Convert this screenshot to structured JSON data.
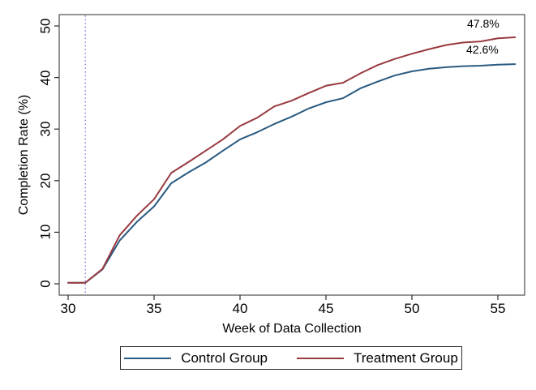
{
  "chart_data": {
    "type": "line",
    "xlabel": "Week of Data Collection",
    "ylabel": "Completion Rate (%)",
    "xlim": [
      30,
      56
    ],
    "ylim": [
      0,
      50
    ],
    "x_ticks": [
      30,
      35,
      40,
      45,
      50,
      55
    ],
    "y_ticks": [
      0,
      10,
      20,
      30,
      40,
      50
    ],
    "grid": false,
    "x": [
      30,
      31,
      32,
      33,
      34,
      35,
      36,
      37,
      38,
      39,
      40,
      41,
      42,
      43,
      44,
      45,
      46,
      47,
      48,
      49,
      50,
      51,
      52,
      53,
      54,
      55,
      56
    ],
    "series": [
      {
        "name": "Control Group",
        "color": "#295a80",
        "values": [
          0.2,
          0.2,
          2.8,
          8.4,
          12.0,
          15.0,
          19.5,
          21.6,
          23.5,
          25.8,
          28.0,
          29.4,
          31.0,
          32.4,
          34.0,
          35.2,
          36.0,
          37.9,
          39.2,
          40.4,
          41.2,
          41.7,
          42.0,
          42.2,
          42.3,
          42.5,
          42.6
        ]
      },
      {
        "name": "Treatment Group",
        "color": "#983a40",
        "values": [
          0.2,
          0.2,
          2.9,
          9.4,
          13.2,
          16.4,
          21.5,
          23.6,
          25.8,
          28.0,
          30.6,
          32.2,
          34.4,
          35.5,
          37.0,
          38.4,
          39.0,
          40.8,
          42.4,
          43.6,
          44.6,
          45.5,
          46.3,
          46.8,
          47.0,
          47.6,
          47.8
        ]
      }
    ],
    "vline": {
      "x": 31,
      "style": "dotted",
      "color": "#6f6fd0"
    },
    "annotations": [
      {
        "text": "47.8%",
        "series": "Treatment Group"
      },
      {
        "text": "42.6%",
        "series": "Control Group"
      }
    ],
    "legend": {
      "position": "bottom",
      "entries": [
        "Control Group",
        "Treatment Group"
      ]
    }
  }
}
